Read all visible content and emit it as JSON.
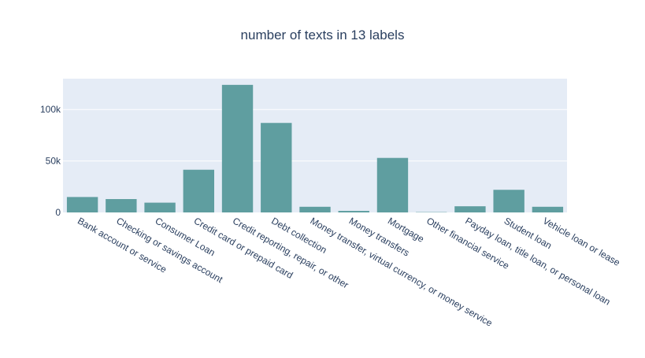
{
  "chart_data": {
    "type": "bar",
    "title": "number of texts in 13 labels",
    "xlabel": "",
    "ylabel": "",
    "categories": [
      "Bank account or service",
      "Checking or savings account",
      "Consumer Loan",
      "Credit card or prepaid card",
      "Credit reporting, repair, or other",
      "Debt collection",
      "Money transfer, virtual currency, or money service",
      "Money transfers",
      "Mortgage",
      "Other financial service",
      "Payday loan, title loan, or personal loan",
      "Student loan",
      "Vehicle loan or lease"
    ],
    "values": [
      15000,
      13000,
      9500,
      41500,
      124000,
      87000,
      5500,
      1500,
      53000,
      300,
      6000,
      22000,
      5500
    ],
    "ylim": [
      0,
      130000
    ],
    "yticks": [
      0,
      50000,
      100000
    ],
    "ytick_labels": [
      "0",
      "50k",
      "100k"
    ],
    "bar_color": "#5f9ea0",
    "plot_background": "#e5ecf6",
    "grid": true,
    "legend": "none"
  }
}
